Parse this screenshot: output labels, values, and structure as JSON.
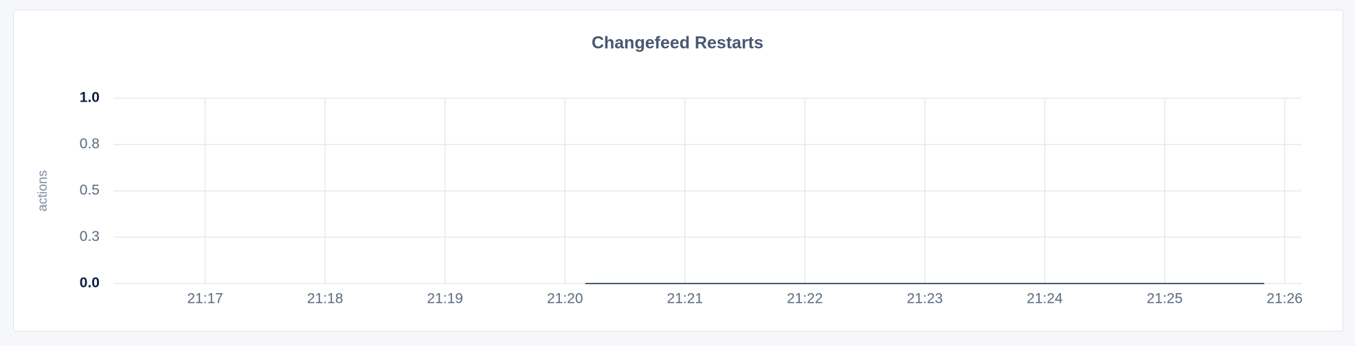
{
  "chart_data": {
    "type": "line",
    "title": "Changefeed Restarts",
    "y_label": "actions",
    "series": [
      {
        "name": "Changefeed Restarts",
        "color": "#475872",
        "x": [
          1280.17,
          1285.83
        ],
        "values": [
          0,
          0
        ]
      }
    ],
    "xlim": [
      1276.12,
      1286.14
    ],
    "xticks": [
      {
        "value": 1277,
        "label": "21:17"
      },
      {
        "value": 1278,
        "label": "21:18"
      },
      {
        "value": 1279,
        "label": "21:19"
      },
      {
        "value": 1280,
        "label": "21:20"
      },
      {
        "value": 1281,
        "label": "21:21"
      },
      {
        "value": 1282,
        "label": "21:22"
      },
      {
        "value": 1283,
        "label": "21:23"
      },
      {
        "value": 1284,
        "label": "21:24"
      },
      {
        "value": 1285,
        "label": "21:25"
      },
      {
        "value": 1286,
        "label": "21:26"
      }
    ],
    "ylim": [
      0,
      1
    ],
    "yticks": [
      {
        "value": 0,
        "label": "0.0"
      },
      {
        "value": 0.25,
        "label": "0.3"
      },
      {
        "value": 0.5,
        "label": "0.5"
      },
      {
        "value": 0.75,
        "label": "0.8"
      },
      {
        "value": 1,
        "label": "1.0"
      }
    ],
    "grid": true
  }
}
